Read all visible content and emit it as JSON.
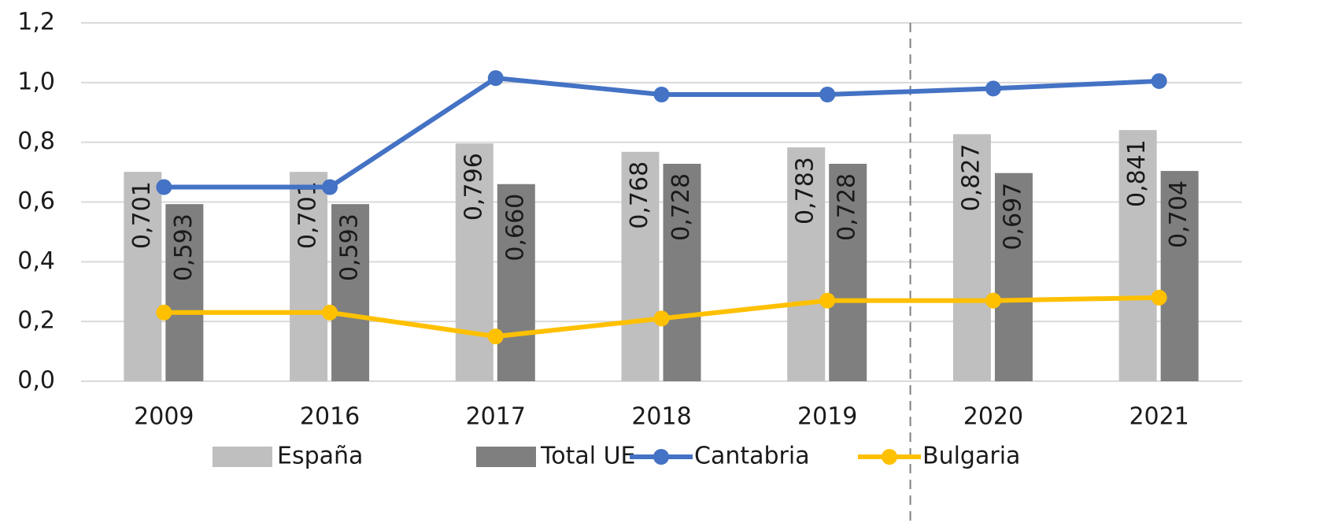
{
  "chart_data": {
    "type": "bar-line",
    "categories": [
      "2009",
      "2016",
      "2017",
      "2018",
      "2019",
      "2020",
      "2021"
    ],
    "series": [
      {
        "name": "España",
        "type": "bar",
        "color": "#bfbfbf",
        "values": [
          0.701,
          0.701,
          0.796,
          0.768,
          0.783,
          0.827,
          0.841
        ],
        "value_labels": [
          "0,701",
          "0,701",
          "0,796",
          "0,768",
          "0,783",
          "0,827",
          "0,841"
        ]
      },
      {
        "name": "Total UE",
        "type": "bar",
        "color": "#7f7f7f",
        "values": [
          0.593,
          0.593,
          0.66,
          0.728,
          0.728,
          0.697,
          0.704
        ],
        "value_labels": [
          "0,593",
          "0,593",
          "0,660",
          "0,728",
          "0,728",
          "0,697",
          "0,704"
        ]
      },
      {
        "name": "Cantabria",
        "type": "line",
        "color": "#4472c4",
        "values": [
          0.65,
          0.65,
          1.015,
          0.96,
          0.96,
          0.98,
          1.005
        ]
      },
      {
        "name": "Bulgaria",
        "type": "line",
        "color": "#ffc000",
        "values": [
          0.23,
          0.23,
          0.15,
          0.21,
          0.27,
          0.27,
          0.28
        ]
      }
    ],
    "ylim": [
      0,
      1.2
    ],
    "yticks": [
      {
        "value": 0,
        "label": "0,0"
      },
      {
        "value": 0.2,
        "label": "0,2"
      },
      {
        "value": 0.4,
        "label": "0,4"
      },
      {
        "value": 0.6,
        "label": "0,6"
      },
      {
        "value": 0.8,
        "label": "0,8"
      },
      {
        "value": 1.0,
        "label": "1,0"
      },
      {
        "value": 1.2,
        "label": "1,2"
      }
    ],
    "grid": true,
    "legend": "bottom"
  }
}
